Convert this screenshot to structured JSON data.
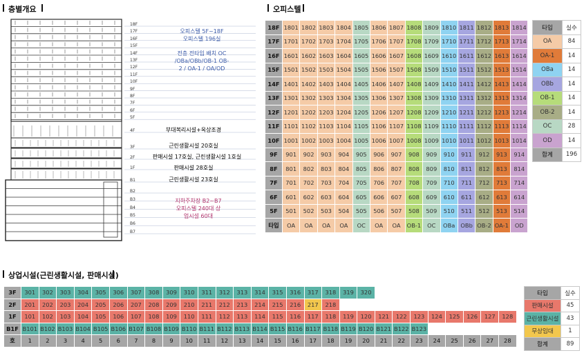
{
  "section_overview": "층별개요",
  "section_office": "오피스텔",
  "section_commercial": "상업시설(근린생활시설, 판매시설)",
  "building_floors": [
    "18F",
    "17F",
    "16F",
    "15F",
    "14F",
    "13F",
    "12F",
    "11F",
    "10F",
    "9F",
    "8F",
    "7F",
    "6F",
    "5F",
    "4F",
    "3F",
    "2F",
    "1F",
    "B1",
    "B2",
    "B3",
    "B4",
    "B5",
    "B6",
    "B7"
  ],
  "notes": {
    "office_line1": "오피스텔 5F~18F",
    "office_line2": "오피스텔 196실",
    "office_line3": "전층 전타입 배치 OC",
    "office_line4": "/OBa/OBb/OB-1 OB-",
    "office_line5": "2 / OA-1 / OA/OD",
    "f4": "부대복리시설+옥상조경",
    "f3": "근린생활시설 20호실",
    "f2": "판매시설 17호실, 근린생활시설 1호실",
    "f1": "판매시설 28호실",
    "b1": "근린생활시설 23호실",
    "park_line1": "지하주차장 B2~B7",
    "park_line2": "오피스텔 240대 상",
    "park_line3": "업시설 60대"
  },
  "colors": {
    "OA": "#f5cba7",
    "OA-1": "#e07b39",
    "OBa": "#8fd3f1",
    "OBb": "#a6a6e0",
    "OB-1": "#b6dc7a",
    "OB-2": "#a8ad86",
    "OC": "#b8d8c4",
    "OD": "#c9a3cf",
    "sale": "#e8786b",
    "neighborhood": "#5bb3a6",
    "free": "#f2c74d",
    "gray": "#a6a6a6"
  },
  "office_floors": [
    "18F",
    "17F",
    "16F",
    "15F",
    "14F",
    "13F",
    "12F",
    "11F",
    "10F",
    "9F",
    "8F",
    "7F",
    "6F",
    "5F"
  ],
  "office_types": [
    "OA",
    "OA",
    "OA",
    "OA",
    "OC",
    "OA",
    "OA",
    "OB-1",
    "OC",
    "OBa",
    "OBb",
    "OB-2",
    "OA-1",
    "OD"
  ],
  "office_type_row_label": "타입",
  "office_type_row": [
    "OA",
    "OA",
    "OA",
    "OA",
    "OC",
    "OA",
    "OA",
    "OB-1",
    "OC",
    "OBa",
    "OBb",
    "OB-2",
    "OA-1",
    "OD"
  ],
  "office_legend": {
    "header_type": "타입",
    "header_count": "실수",
    "rows": [
      {
        "type": "OA",
        "count": "84"
      },
      {
        "type": "OA-1",
        "count": "14"
      },
      {
        "type": "OBa",
        "count": "14"
      },
      {
        "type": "OBb",
        "count": "14"
      },
      {
        "type": "OB-1",
        "count": "14"
      },
      {
        "type": "OB-2",
        "count": "14"
      },
      {
        "type": "OC",
        "count": "28"
      },
      {
        "type": "OD",
        "count": "14"
      }
    ],
    "total_label": "합계",
    "total": "196"
  },
  "commercial_rows": [
    {
      "floor": "3F",
      "units": [
        "301",
        "302",
        "303",
        "304",
        "305",
        "306",
        "307",
        "308",
        "309",
        "310",
        "311",
        "312",
        "313",
        "314",
        "315",
        "316",
        "317",
        "318",
        "319",
        "320"
      ],
      "kinds": "nnnnnnnnnnnnnnnnnnnn"
    },
    {
      "floor": "2F",
      "units": [
        "201",
        "202",
        "203",
        "204",
        "205",
        "206",
        "207",
        "208",
        "209",
        "210",
        "211",
        "212",
        "213",
        "214",
        "215",
        "216",
        "217",
        "218"
      ],
      "kinds": "ssssssssssssssssfs"
    },
    {
      "floor": "1F",
      "units": [
        "101",
        "102",
        "103",
        "104",
        "105",
        "106",
        "107",
        "108",
        "109",
        "110",
        "111",
        "112",
        "113",
        "114",
        "115",
        "116",
        "117",
        "118",
        "119",
        "120",
        "121",
        "122",
        "123",
        "124",
        "125",
        "126",
        "127",
        "128"
      ],
      "kinds": "ssssssssssssssssssssssssssss"
    },
    {
      "floor": "B1F",
      "units": [
        "B101",
        "B102",
        "B103",
        "B104",
        "B105",
        "B106",
        "B107",
        "B108",
        "B109",
        "B110",
        "B111",
        "B112",
        "B113",
        "B114",
        "B115",
        "B116",
        "B117",
        "B118",
        "B119",
        "B120",
        "B121",
        "B122",
        "B123"
      ],
      "kinds": "nnnnnnnnnnnnnnnnnnnnnnn"
    },
    {
      "floor": "호",
      "units": [
        "1",
        "2",
        "3",
        "4",
        "5",
        "6",
        "7",
        "8",
        "9",
        "10",
        "11",
        "12",
        "13",
        "14",
        "15",
        "16",
        "17",
        "18",
        "19",
        "20",
        "21",
        "22",
        "23",
        "24",
        "25",
        "26",
        "27",
        "28"
      ],
      "kinds": "gggggggggggggggggggggggggggg"
    }
  ],
  "commercial_legend": {
    "header_type": "타입",
    "header_count": "실수",
    "rows": [
      {
        "type": "판매시설",
        "count": "45",
        "kind": "s"
      },
      {
        "type": "근린생활시설",
        "count": "43",
        "kind": "n"
      },
      {
        "type": "무상임대",
        "count": "1",
        "kind": "f"
      }
    ],
    "total_label": "합계",
    "total": "89"
  }
}
